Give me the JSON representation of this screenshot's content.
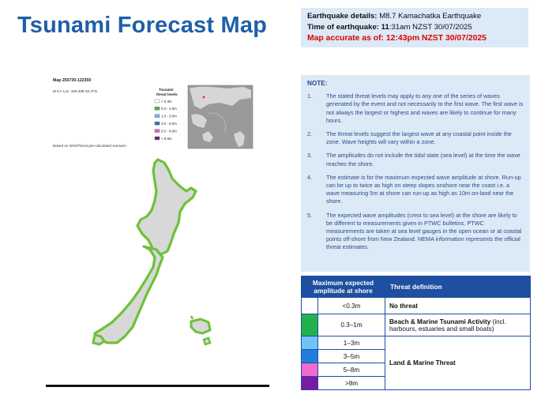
{
  "title": "Tsunami Forecast Map",
  "details": {
    "eq_label": "Earthquake details:",
    "eq_value": "M8.7 Kamachatka Earthquake",
    "time_label": "Time of earthquake:",
    "time_hm": "11",
    "time_rest": ":31am NZST 30/07/2025",
    "accurate": "Map accurate as of: 12:43pm NZST 30/07/2025"
  },
  "map": {
    "code": "Map 250730-122359",
    "params": "M 8.7 Loc: 160.40E 52.47N",
    "based_on": "Based on GNSThreat pre-calculated scenario",
    "legend_title_1": "Tsunami",
    "legend_title_2": "threat levels",
    "legend": [
      {
        "label": "< 0.3m",
        "color": "#ffffff"
      },
      {
        "label": "0.3 - 1.0m",
        "color": "#5cb030"
      },
      {
        "label": "1.0 - 3.0m",
        "color": "#7ab8f0"
      },
      {
        "label": "3.0 - 5.0m",
        "color": "#2e6ed0"
      },
      {
        "label": "5.0 - 8.0m",
        "color": "#ee5fb8"
      },
      {
        "label": "> 8.0m",
        "color": "#6a1f8a"
      }
    ],
    "coast_color": "#6cc23a",
    "land_color": "#d8d8d8"
  },
  "notes": {
    "title": "NOTE:",
    "items": [
      {
        "num": "1.",
        "text": "The stated threat levels may apply to any one of the series of waves generated by the event and not necessarily to the first wave. The first wave is not always the largest or highest and waves are likely to continue for many hours."
      },
      {
        "num": "2.",
        "text": "The threat levels suggest the largest wave at any coastal point inside the zone. Wave heights will vary within a zone."
      },
      {
        "num": "3.",
        "text": "The amplitudes do not include the tidal state (sea level) at the time the wave reaches the shore."
      },
      {
        "num": "4.",
        "text": "The estimate is for the maximum expected wave amplitude at shore. Run-up can be up to twice as high on steep slopes onshore near the coast i.e. a wave measuring 5m at shore can run-up as high as 10m on-land near the shore."
      },
      {
        "num": "5.",
        "text": "The expected wave amplitudes (crest to sea level) at the shore are likely to be different to measurements given in PTWC bulletins. PTWC measurements are taken at sea level gauges in the open ocean or at coastal points off-shore from New Zealand. NEMA information represents the official threat estimates."
      }
    ]
  },
  "threat_table": {
    "header_amp": "Maximum expected amplitude at shore",
    "header_def": "Threat definition",
    "rows": [
      {
        "range": "<0.3m",
        "color": "#ffffff"
      },
      {
        "range": "0.3–1m",
        "color": "#22b14c"
      },
      {
        "range": "1–3m",
        "color": "#72c3f5"
      },
      {
        "range": "3–5m",
        "color": "#1f7fe0"
      },
      {
        "range": "5–8m",
        "color": "#f06bd0"
      },
      {
        "range": ">8m",
        "color": "#7a1aa6"
      }
    ],
    "def_no_threat": "No threat",
    "def_beach_bold": "Beach & Marine Tsunami Activity",
    "def_beach_rest": " (incl. harbours, estuaries and small boats)",
    "def_land": "Land & Marine Threat"
  }
}
